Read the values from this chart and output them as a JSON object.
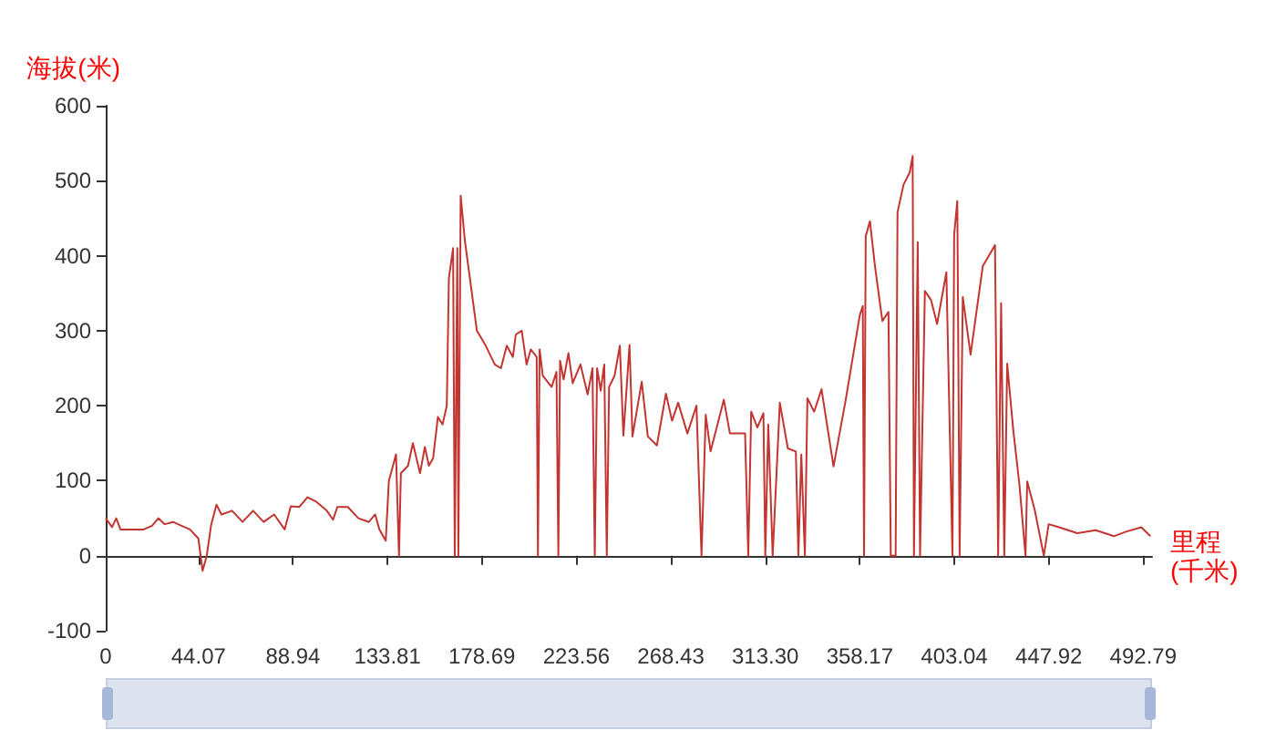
{
  "chart_data": {
    "type": "line",
    "xlabel": "里程\n(千米)",
    "ylabel": "海拔(米)",
    "color": "#c23531",
    "x": [
      0,
      3,
      5,
      7,
      12,
      18,
      22,
      25,
      28,
      32,
      36,
      40,
      44,
      46,
      48,
      50,
      52.6,
      55,
      60,
      65,
      70,
      75,
      80,
      85,
      87.9,
      92,
      95.8,
      100,
      105,
      108,
      110,
      115,
      120,
      125,
      128,
      130,
      133,
      134.5,
      137.9,
      139.3,
      140.2,
      143.6,
      145.9,
      149.3,
      151.6,
      153.5,
      155.5,
      157.8,
      160,
      162,
      163,
      165,
      165.8,
      167,
      167.5,
      168.6,
      170.6,
      176.3,
      180.5,
      184.8,
      187.7,
      190.5,
      193.4,
      194.8,
      197.6,
      199.9,
      201.9,
      204.7,
      205.3,
      206.1,
      207.6,
      211.8,
      214.1,
      215,
      215.8,
      217.5,
      219.8,
      221.8,
      225.5,
      228.9,
      231.2,
      232.3,
      233.4,
      235.1,
      236.8,
      238,
      239.1,
      241.7,
      244.2,
      245.9,
      248.8,
      250.2,
      254.6,
      257.5,
      261.8,
      266.1,
      269,
      271.9,
      276.3,
      280.6,
      283,
      285,
      287.3,
      293.6,
      296.5,
      303.7,
      305.2,
      306.6,
      309.5,
      312.4,
      313.3,
      314.7,
      316.8,
      320.2,
      324,
      327.8,
      329,
      330.4,
      332.1,
      333.3,
      336.5,
      340,
      345.7,
      351.5,
      358.2,
      359.6,
      360.2,
      361,
      363,
      365.4,
      368.9,
      371.8,
      372.9,
      375.2,
      376.1,
      379,
      381.9,
      383.3,
      383.9,
      385.7,
      386.8,
      389.1,
      392,
      394.9,
      399.3,
      402.2,
      403,
      404.5,
      405.6,
      407.1,
      410.8,
      416.6,
      422.4,
      423.9,
      425.3,
      426.8,
      428.2,
      431.1,
      434,
      436.9,
      437.7,
      441.2,
      445.6,
      447.9,
      452.8,
      461.5,
      470.2,
      478.9,
      484.6,
      491.9,
      496.2
    ],
    "values": [
      50,
      38,
      50,
      35,
      35,
      35,
      40,
      50,
      42,
      45,
      40,
      35,
      23,
      -20,
      0,
      40,
      68,
      55,
      60,
      45,
      60,
      45,
      55,
      35,
      66,
      65,
      78,
      72,
      60,
      48,
      65,
      65,
      50,
      45,
      55,
      35,
      20,
      100,
      135,
      0,
      110,
      120,
      150,
      110,
      145,
      120,
      130,
      185,
      175,
      200,
      370,
      410,
      0,
      410,
      0,
      480,
      420,
      300,
      280,
      255,
      250,
      280,
      265,
      295,
      300,
      255,
      275,
      265,
      0,
      275,
      240,
      225,
      245,
      0,
      260,
      235,
      270,
      230,
      255,
      215,
      250,
      0,
      250,
      220,
      255,
      0,
      225,
      240,
      280,
      160,
      281,
      159,
      232,
      159,
      147,
      216,
      180,
      204,
      163,
      200,
      0,
      188,
      139,
      208,
      163,
      163,
      0,
      192,
      171,
      190,
      0,
      175,
      0,
      204,
      143,
      139,
      0,
      135,
      0,
      210,
      192,
      222,
      119,
      208,
      321,
      333,
      0,
      426,
      446,
      386,
      313,
      325,
      0,
      0,
      458,
      495,
      511,
      533,
      0,
      418,
      0,
      353,
      341,
      309,
      378,
      0,
      428,
      473,
      0,
      345,
      268,
      386,
      414,
      0,
      337,
      0,
      256,
      167,
      95,
      0,
      99,
      62,
      0,
      42,
      38,
      30,
      34,
      26,
      32,
      38,
      26
    ],
    "xlim": [
      0,
      497
    ],
    "xticks": [
      0,
      44.07,
      88.94,
      133.81,
      178.69,
      223.56,
      268.43,
      {
        "value": 313.3,
        "label": "313.30"
      },
      358.17,
      403.04,
      447.92,
      492.79
    ],
    "ylim": [
      -100,
      600
    ],
    "yticks": [
      -100,
      0,
      100,
      200,
      300,
      400,
      500,
      600
    ]
  }
}
